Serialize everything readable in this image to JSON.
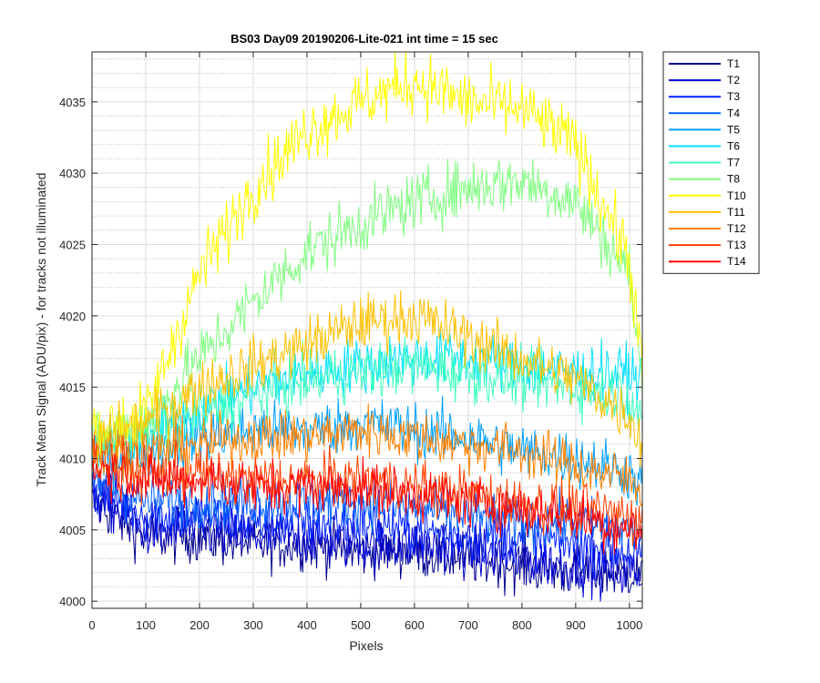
{
  "chart_data": {
    "type": "line",
    "title": "BS03 Day09 20190206-Lite-021 int time = 15 sec",
    "xlabel": "Pixels",
    "ylabel": "Track Mean Signal (ADU/pix) - for tracks not illuminated",
    "xlim": [
      0,
      1024
    ],
    "ylim": [
      3999.5,
      4038.5
    ],
    "x_ticks": [
      0,
      100,
      200,
      300,
      400,
      500,
      600,
      700,
      800,
      900,
      1000
    ],
    "y_ticks": [
      4000,
      4005,
      4010,
      4015,
      4020,
      4025,
      4030,
      4035
    ],
    "grid": true,
    "minor_grid": true,
    "legend_position": "outside-top-right",
    "x": [
      0,
      100,
      200,
      300,
      400,
      500,
      600,
      700,
      800,
      900,
      1000,
      1024
    ],
    "series": [
      {
        "name": "T1",
        "color": "#00008f",
        "noise": 1.3,
        "values": [
          4007,
          4004.5,
          4004.5,
          4004,
          4004,
          4003.5,
          4003.5,
          4003,
          4002.5,
          4002,
          4002,
          4002
        ]
      },
      {
        "name": "T2",
        "color": "#0000d0",
        "noise": 1.3,
        "values": [
          4007.5,
          4005,
          4005,
          4004.5,
          4004.5,
          4004,
          4004,
          4003.5,
          4003,
          4002.5,
          4002,
          4002
        ]
      },
      {
        "name": "T3",
        "color": "#0020ff",
        "noise": 1.3,
        "values": [
          4008,
          4006,
          4006,
          4005.5,
          4005.5,
          4005.5,
          4005,
          4004.5,
          4004.5,
          4004,
          4003.5,
          4003
        ]
      },
      {
        "name": "T4",
        "color": "#0060ff",
        "noise": 1.3,
        "values": [
          4008.5,
          4007,
          4007,
          4007,
          4007,
          4007,
          4006.5,
          4006,
          4005.5,
          4005.5,
          4005,
          4005
        ]
      },
      {
        "name": "T5",
        "color": "#00a0ff",
        "noise": 1.4,
        "values": [
          4010,
          4010.5,
          4011.5,
          4012,
          4012,
          4012.5,
          4012,
          4011.5,
          4010.5,
          4010,
          4009,
          4008
        ]
      },
      {
        "name": "T6",
        "color": "#00e0ff",
        "noise": 1.4,
        "values": [
          4011,
          4011.5,
          4013.5,
          4015,
          4016,
          4016.5,
          4017,
          4017,
          4016.5,
          4016,
          4016,
          4015.5
        ]
      },
      {
        "name": "T7",
        "color": "#40ffc0",
        "noise": 1.4,
        "values": [
          4011,
          4011.5,
          4013,
          4014.5,
          4015.5,
          4016,
          4016.5,
          4016,
          4015.5,
          4015,
          4014.5,
          4013
        ]
      },
      {
        "name": "T8",
        "color": "#80ff80",
        "noise": 1.5,
        "values": [
          4011.5,
          4012.5,
          4017,
          4021,
          4024.5,
          4026.5,
          4028,
          4029,
          4029.5,
          4028,
          4023,
          4015
        ]
      },
      {
        "name": "T10",
        "color": "#ffff00",
        "noise": 1.6,
        "values": [
          4012,
          4013,
          4023,
          4029,
          4033,
          4035,
          4036.5,
          4035,
          4034.5,
          4032,
          4024,
          4016
        ]
      },
      {
        "name": "T11",
        "color": "#ffc000",
        "noise": 1.4,
        "values": [
          4011,
          4012.5,
          4015,
          4016.5,
          4018,
          4019.5,
          4020,
          4018.5,
          4017,
          4015.5,
          4013,
          4011
        ]
      },
      {
        "name": "T12",
        "color": "#ff8000",
        "noise": 1.3,
        "values": [
          4010.5,
          4010.5,
          4011,
          4011.5,
          4011.5,
          4012,
          4011.5,
          4011,
          4010.5,
          4009.5,
          4008.5,
          4008
        ]
      },
      {
        "name": "T13",
        "color": "#ff4000",
        "noise": 1.3,
        "values": [
          4010,
          4009,
          4009,
          4008.5,
          4008.5,
          4008.5,
          4008,
          4007.5,
          4007,
          4006.5,
          4006,
          4005.5
        ]
      },
      {
        "name": "T14",
        "color": "#ff0000",
        "noise": 1.3,
        "values": [
          4009.5,
          4008.5,
          4008.5,
          4008,
          4008,
          4008,
          4007.5,
          4007,
          4006.5,
          4006,
          4005,
          4005
        ]
      }
    ]
  }
}
